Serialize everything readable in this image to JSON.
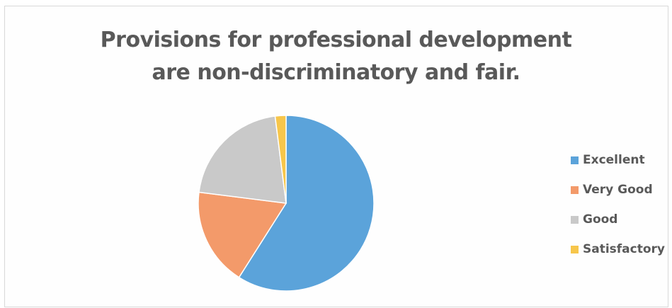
{
  "chart_data": {
    "type": "pie",
    "title": [
      "Provisions for professional development",
      "are non-discriminatory and fair."
    ],
    "categories": [
      "Excellent",
      "Very Good",
      "Good",
      "Satisfactory"
    ],
    "values": [
      59,
      18,
      21,
      2
    ],
    "colors": [
      "#5BA3DA",
      "#F39A6A",
      "#C9C9C9",
      "#F7C64B"
    ],
    "legend_position": "right"
  }
}
